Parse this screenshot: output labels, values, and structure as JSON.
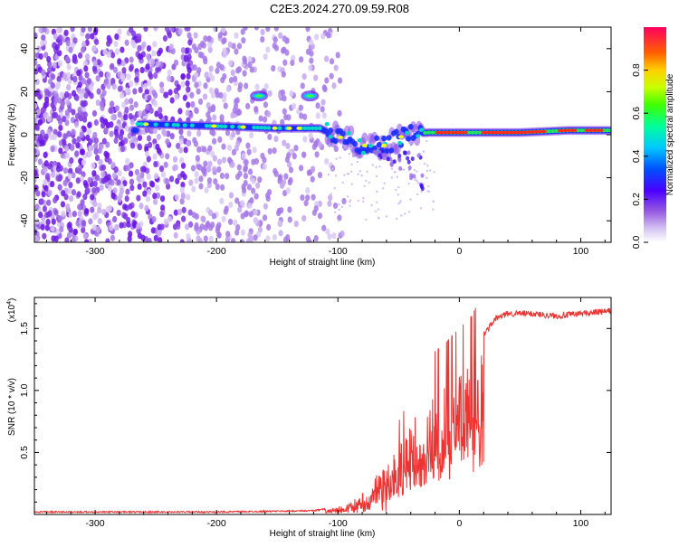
{
  "title": "C2E3.2024.270.09.59.R08",
  "chart_data": [
    {
      "type": "heatmap",
      "xlabel": "Height of straight line (km)",
      "ylabel": "Frequency (Hz)",
      "xlim": [
        -350,
        125
      ],
      "ylim": [
        -50,
        50
      ],
      "xticks": [
        -300,
        -200,
        -100,
        0,
        100
      ],
      "yticks": [
        -40,
        -20,
        0,
        20,
        40
      ],
      "colorbar": {
        "label": "Normalized spectral amplitude",
        "range": [
          0.0,
          1.0
        ],
        "ticks": [
          0.0,
          0.2,
          0.4,
          0.6,
          0.8
        ],
        "tick_labels": [
          "0.0",
          "0.2",
          "0.4",
          "0.6",
          "0.8"
        ]
      },
      "features": {
        "noise_region_x": [
          -350,
          -115
        ],
        "carrier_track": [
          {
            "x": -265,
            "y": 5
          },
          {
            "x": -200,
            "y": 4
          },
          {
            "x": -150,
            "y": 3
          },
          {
            "x": -115,
            "y": 3
          },
          {
            "x": -95,
            "y": -2
          },
          {
            "x": -80,
            "y": -5
          },
          {
            "x": -60,
            "y": -5
          },
          {
            "x": -45,
            "y": 0
          },
          {
            "x": -25,
            "y": 1
          },
          {
            "x": 0,
            "y": 1
          },
          {
            "x": 50,
            "y": 1
          },
          {
            "x": 90,
            "y": 2
          },
          {
            "x": 125,
            "y": 2
          }
        ],
        "side_blobs": [
          {
            "x": -165,
            "y": 18
          },
          {
            "x": -123,
            "y": 18
          }
        ]
      }
    },
    {
      "type": "line",
      "xlabel": "Height of straight line (km)",
      "ylabel": "SNR (10 * v/v)",
      "yscale_label": "(x10",
      "yscale_exp": "4",
      "xlim": [
        -350,
        125
      ],
      "ylim": [
        0,
        1.75
      ],
      "xticks": [
        -300,
        -200,
        -100,
        0,
        100
      ],
      "yticks": [
        0.5,
        1.0,
        1.5
      ],
      "ytick_labels": [
        "0.5",
        "1.0",
        "1.5"
      ],
      "color": "#ee3333",
      "series": [
        {
          "envelope": [
            {
              "x": -350,
              "y": 0.02
            },
            {
              "x": -200,
              "y": 0.02
            },
            {
              "x": -120,
              "y": 0.03
            },
            {
              "x": -100,
              "y": 0.06
            },
            {
              "x": -90,
              "y": 0.1
            },
            {
              "x": -75,
              "y": 0.25
            },
            {
              "x": -65,
              "y": 0.35
            },
            {
              "x": -50,
              "y": 0.55
            },
            {
              "x": -40,
              "y": 0.75
            },
            {
              "x": -30,
              "y": 0.9
            },
            {
              "x": -15,
              "y": 1.0
            },
            {
              "x": 0,
              "y": 1.15
            },
            {
              "x": 10,
              "y": 1.25
            },
            {
              "x": 20,
              "y": 1.45
            },
            {
              "x": 30,
              "y": 1.58
            },
            {
              "x": 40,
              "y": 1.62
            },
            {
              "x": 60,
              "y": 1.62
            },
            {
              "x": 80,
              "y": 1.6
            },
            {
              "x": 100,
              "y": 1.62
            },
            {
              "x": 125,
              "y": 1.64
            }
          ]
        }
      ]
    }
  ]
}
